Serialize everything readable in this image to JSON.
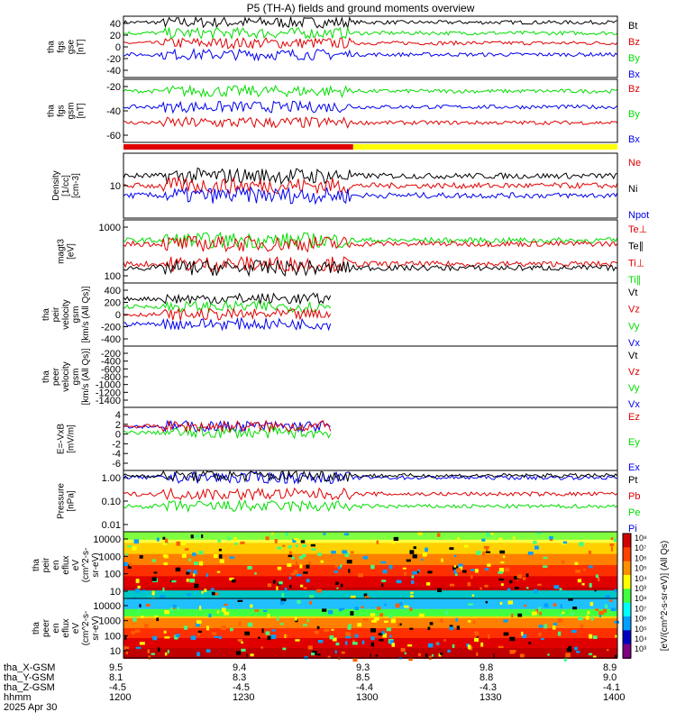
{
  "title": "P5 (TH-A) fields and ground moments overview",
  "colors": {
    "black": "#000000",
    "red": "#e00000",
    "green": "#00dd00",
    "blue": "#0000ee",
    "yellow": "#ffff00"
  },
  "chart_data": {
    "type": "line",
    "x_range_hhmm": [
      "1200",
      "1400"
    ],
    "orbit_table": {
      "row_labels": [
        "tha_X-GSM",
        "tha_Y-GSM",
        "tha_Z-GSM",
        "hhmm",
        "2025 Apr 30"
      ],
      "columns": [
        [
          "9.5",
          "8.1",
          "-4.5",
          "1200"
        ],
        [
          "9.4",
          "8.3",
          "-4.5",
          "1230"
        ],
        [
          "9.3",
          "8.5",
          "-4.4",
          "1300"
        ],
        [
          "9.8",
          "8.8",
          "-4.3",
          "1330"
        ],
        [
          "8.9",
          "9.0",
          "-4.1",
          "1400"
        ]
      ]
    },
    "panels": [
      {
        "id": "fgs_gse",
        "ylabel": [
          "tha",
          "fgs",
          "gse",
          "[nT]"
        ],
        "yticks": [
          "40",
          "20",
          "0",
          "-20",
          "-40"
        ],
        "ylim": [
          -40,
          40
        ],
        "legend": [
          {
            "name": "Bt",
            "color": "#000000"
          },
          {
            "name": "Bz",
            "color": "#e00000"
          },
          {
            "name": "By",
            "color": "#00dd00"
          },
          {
            "name": "Bx",
            "color": "#0000ee"
          }
        ],
        "series": [
          {
            "name": "Bt",
            "level": 32
          },
          {
            "name": "Bz",
            "level": 5
          },
          {
            "name": "By",
            "level": 18
          },
          {
            "name": "Bx",
            "level": -10
          }
        ]
      },
      {
        "id": "fgs_gsm",
        "ylabel": [
          "tha",
          "fgs",
          "gsm",
          "[nT]"
        ],
        "yticks": [
          "-20",
          "-40",
          "-60"
        ],
        "ylim": [
          -70,
          10
        ],
        "legend": [
          {
            "name": "Bz",
            "color": "#e00000"
          },
          {
            "name": "By",
            "color": "#00dd00"
          },
          {
            "name": "Bx",
            "color": "#0000ee"
          }
        ],
        "series": [
          {
            "name": "By",
            "level": -5
          },
          {
            "name": "Bx",
            "level": -25
          },
          {
            "name": "Bz",
            "level": -45
          }
        ]
      },
      {
        "id": "density",
        "ylabel": [
          "Density",
          "[1/cc]",
          "[cm-3]"
        ],
        "yticks": [
          "10"
        ],
        "ylim": [
          1,
          100
        ],
        "log": true,
        "legend": [
          {
            "name": "Ne",
            "color": "#e00000"
          },
          {
            "name": "Ni",
            "color": "#000000"
          },
          {
            "name": "Npot",
            "color": "#0000ee"
          }
        ],
        "series": [
          {
            "name": "Ni",
            "level": 20
          },
          {
            "name": "Ne",
            "level": 10
          },
          {
            "name": "Npot",
            "level": 5
          }
        ]
      },
      {
        "id": "temp",
        "ylabel": [
          "magt3",
          "[eV]"
        ],
        "yticks": [
          "1000",
          "100"
        ],
        "ylim": [
          20,
          2000
        ],
        "log": true,
        "legend": [
          {
            "name": "Te⊥",
            "color": "#e00000"
          },
          {
            "name": "Te∥",
            "color": "#000000"
          },
          {
            "name": "Ti⊥",
            "color": "#e00000"
          },
          {
            "name": "Ti∥",
            "color": "#00dd00"
          }
        ],
        "series": [
          {
            "name": "Ti∥",
            "level": 450
          },
          {
            "name": "Ti⊥",
            "level": 350
          },
          {
            "name": "Te⊥",
            "level": 80
          },
          {
            "name": "Te∥",
            "level": 60
          }
        ]
      },
      {
        "id": "peir_vel",
        "ylabel": [
          "tha",
          "peir",
          "velocity",
          "gsm",
          "[km/s (All Qs)]"
        ],
        "yticks": [
          "400",
          "200",
          "0",
          "-200",
          "-400"
        ],
        "ylim": [
          -400,
          400
        ],
        "legend": [
          {
            "name": "Vt",
            "color": "#000000"
          },
          {
            "name": "Vz",
            "color": "#e00000"
          },
          {
            "name": "Vy",
            "color": "#00dd00"
          },
          {
            "name": "Vx",
            "color": "#0000ee"
          }
        ],
        "series": [
          {
            "name": "Vt",
            "level": 200
          },
          {
            "name": "Vy",
            "level": 100
          },
          {
            "name": "Vz",
            "level": 0
          },
          {
            "name": "Vx",
            "level": -120
          }
        ],
        "end_fraction": 0.42
      },
      {
        "id": "peer_vel",
        "ylabel": [
          "tha",
          "peer",
          "velocity",
          "gsm",
          "[km/s (All Qs)]"
        ],
        "yticks": [
          "-200",
          "-400",
          "-600",
          "-800",
          "-1000",
          "-1200",
          "-1400"
        ],
        "ylim": [
          -1450,
          -200
        ],
        "legend": [
          {
            "name": "Vt",
            "color": "#000000"
          },
          {
            "name": "Vz",
            "color": "#e00000"
          },
          {
            "name": "Vy",
            "color": "#00dd00"
          },
          {
            "name": "Vx",
            "color": "#0000ee"
          }
        ],
        "series": []
      },
      {
        "id": "efield",
        "ylabel": [
          "E=-VxB",
          "[mV/m]"
        ],
        "yticks": [
          "4",
          "2",
          "0",
          "-2",
          "-4",
          "-6"
        ],
        "ylim": [
          -6,
          4
        ],
        "legend": [
          {
            "name": "Ez",
            "color": "#e00000"
          },
          {
            "name": "Ey",
            "color": "#00dd00"
          },
          {
            "name": "Ex",
            "color": "#0000ee"
          }
        ],
        "series": [
          {
            "name": "Ex",
            "level": 1
          },
          {
            "name": "Ey",
            "level": 0
          },
          {
            "name": "Ez",
            "level": 1
          }
        ],
        "end_fraction": 0.42
      },
      {
        "id": "pressure",
        "ylabel": [
          "Pressure",
          "[nPa]"
        ],
        "yticks": [
          "1.00",
          "0.10",
          "0.01"
        ],
        "ylim": [
          0.005,
          2
        ],
        "log": true,
        "legend": [
          {
            "name": "Pt",
            "color": "#000000"
          },
          {
            "name": "Pb",
            "color": "#e00000"
          },
          {
            "name": "Pe",
            "color": "#00dd00"
          },
          {
            "name": "Pi",
            "color": "#0000ee"
          }
        ],
        "series": [
          {
            "name": "Pi",
            "level": 1.0
          },
          {
            "name": "Pt",
            "level": 1.2
          },
          {
            "name": "Pb",
            "level": 0.2
          },
          {
            "name": "Pe",
            "level": 0.06
          }
        ]
      },
      {
        "id": "peir_spec",
        "type": "heatmap",
        "ylabel": [
          "tha",
          "peir",
          "en",
          "eflux",
          "eV",
          "(cm^2-s-",
          "sr-eV)"
        ],
        "yticks": [
          "10000",
          "1000",
          "100",
          "10"
        ]
      },
      {
        "id": "peer_spec",
        "type": "heatmap",
        "ylabel": [
          "tha",
          "peer",
          "en",
          "eflux",
          "eV",
          "(cm^2-s-",
          "sr-eV)"
        ],
        "yticks": [
          "10000",
          "1000",
          "100",
          "10"
        ]
      }
    ],
    "colorbar": {
      "label": "[eV/(cm^2-s-sr-eV)] (All Qs)",
      "ticks": [
        "10⁸",
        "10⁷",
        "10⁶",
        "10⁵",
        "10⁴",
        "10³",
        "10⁸",
        "10⁷",
        "10⁶",
        "10⁵",
        "10⁴",
        "10³"
      ]
    },
    "status_bar": {
      "segments": [
        {
          "color": "#e00000",
          "from": 0,
          "to": 0.465
        },
        {
          "color": "#ffff00",
          "from": 0.465,
          "to": 1
        }
      ]
    }
  }
}
